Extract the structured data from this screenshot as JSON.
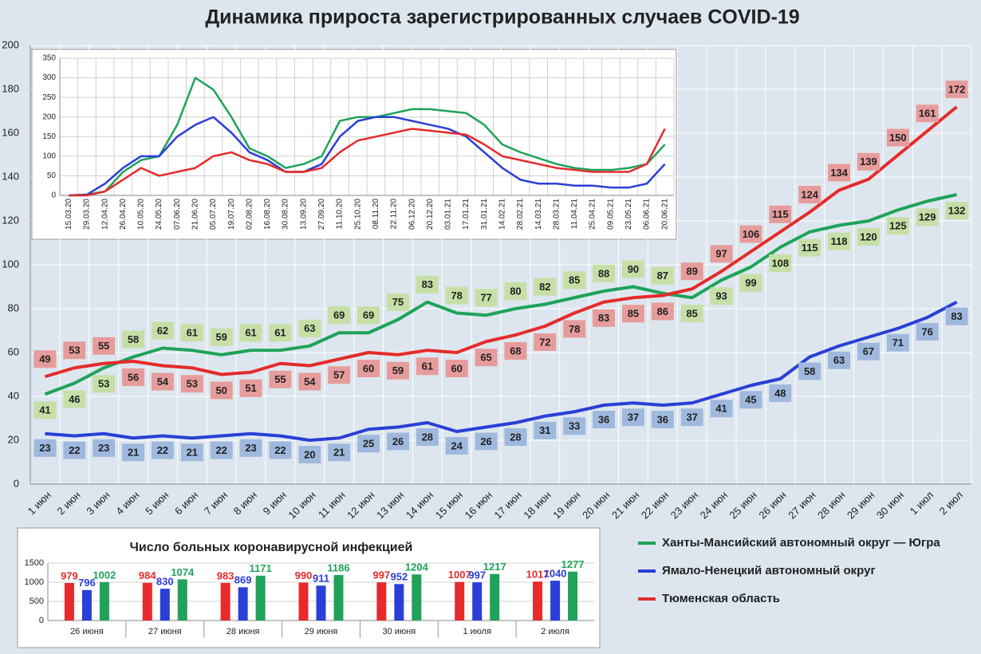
{
  "chart_data": [
    {
      "type": "line",
      "title": "Динамика прироста зарегистрированных случаев COVID-19",
      "categories": [
        "1 июн",
        "2 июн",
        "3 июн",
        "4 июн",
        "5 июн",
        "6 июн",
        "7 июн",
        "8 июн",
        "9 июн",
        "10 июн",
        "11 июн",
        "12 июн",
        "13 июн",
        "14 июн",
        "15 июн",
        "16 июн",
        "17 июн",
        "18 июн",
        "19 июн",
        "20 июн",
        "21 июн",
        "22 июн",
        "23 июн",
        "24 июн",
        "25 июн",
        "26 июн",
        "27 июн",
        "28 июн",
        "29 июн",
        "30 июн",
        "1 июл",
        "2 июл"
      ],
      "series": [
        {
          "name": "Ханты-Мансийский автономный округ — Югра",
          "color": "#1fa35a",
          "label_color": "#c6dfa6",
          "values": [
            41,
            46,
            53,
            58,
            62,
            61,
            59,
            61,
            61,
            63,
            69,
            69,
            75,
            83,
            78,
            77,
            80,
            82,
            85,
            88,
            90,
            87,
            85,
            93,
            99,
            108,
            115,
            118,
            120,
            125,
            129,
            132
          ]
        },
        {
          "name": "Ямало-Ненецкий автономный округ",
          "color": "#2a3fd6",
          "label_color": "#9fb9de",
          "values": [
            23,
            22,
            23,
            21,
            22,
            21,
            22,
            23,
            22,
            20,
            21,
            25,
            26,
            28,
            24,
            26,
            28,
            31,
            33,
            36,
            37,
            36,
            37,
            41,
            45,
            48,
            58,
            63,
            67,
            71,
            76,
            83
          ]
        },
        {
          "name": "Тюменская область",
          "color": "#e52b2b",
          "label_color": "#e79c9c",
          "values": [
            49,
            53,
            55,
            56,
            54,
            53,
            50,
            51,
            55,
            54,
            57,
            60,
            59,
            61,
            60,
            65,
            68,
            72,
            78,
            83,
            85,
            86,
            89,
            97,
            106,
            115,
            124,
            134,
            139,
            150,
            161,
            172
          ]
        }
      ],
      "ylim": [
        0,
        200
      ],
      "yticks": [
        0,
        20,
        40,
        60,
        80,
        100,
        120,
        140,
        160,
        180,
        200
      ],
      "grid": true,
      "data_labels": true,
      "legend": "bottom-right"
    },
    {
      "type": "line",
      "categories": [
        "15.03.20",
        "29.03.20",
        "12.04.20",
        "26.04.20",
        "10.05.20",
        "24.05.20",
        "07.06.20",
        "21.06.20",
        "05.07.20",
        "19.07.20",
        "02.08.20",
        "16.08.20",
        "30.08.20",
        "13.09.20",
        "27.09.20",
        "11.10.20",
        "25.10.20",
        "08.11.20",
        "22.11.20",
        "06.12.20",
        "20.12.20",
        "03.01.21",
        "17.01.21",
        "31.01.21",
        "14.02.21",
        "28.02.21",
        "14.03.21",
        "28.03.21",
        "11.04.21",
        "25.04.21",
        "09.05.21",
        "23.05.21",
        "06.06.21",
        "20.06.21"
      ],
      "series": [
        {
          "color": "#1fa35a",
          "values": [
            0,
            2,
            10,
            60,
            90,
            100,
            180,
            300,
            270,
            200,
            120,
            100,
            70,
            80,
            100,
            190,
            200,
            200,
            210,
            220,
            220,
            215,
            210,
            180,
            130,
            110,
            95,
            80,
            70,
            65,
            65,
            70,
            80,
            130
          ]
        },
        {
          "color": "#2a3fd6",
          "values": [
            0,
            2,
            30,
            70,
            100,
            100,
            150,
            180,
            200,
            160,
            110,
            90,
            60,
            60,
            80,
            150,
            190,
            200,
            200,
            190,
            180,
            170,
            150,
            110,
            70,
            40,
            30,
            30,
            25,
            25,
            20,
            20,
            30,
            80
          ]
        },
        {
          "color": "#e52b2b",
          "values": [
            0,
            0,
            10,
            40,
            70,
            50,
            60,
            70,
            100,
            110,
            90,
            80,
            60,
            60,
            70,
            110,
            140,
            150,
            160,
            170,
            165,
            160,
            155,
            130,
            100,
            90,
            80,
            70,
            65,
            60,
            60,
            60,
            80,
            170
          ]
        }
      ],
      "ylim": [
        0,
        350
      ],
      "yticks": [
        0,
        50,
        100,
        150,
        200,
        250,
        300,
        350
      ],
      "grid": true
    },
    {
      "type": "bar",
      "title": "Число больных коронавирусной инфекцией",
      "categories": [
        "26 июня",
        "27 июня",
        "28 июня",
        "29 июня",
        "30 июня",
        "1 июля",
        "2 июля"
      ],
      "series": [
        {
          "color": "#e52b2b",
          "values": [
            979,
            984,
            983,
            990,
            997,
            1007,
            1017
          ]
        },
        {
          "color": "#2a3fd6",
          "values": [
            796,
            830,
            869,
            911,
            952,
            997,
            1040
          ]
        },
        {
          "color": "#1fa35a",
          "values": [
            1002,
            1074,
            1171,
            1186,
            1204,
            1217,
            1277
          ]
        }
      ],
      "ylim": [
        0,
        1500
      ],
      "yticks": [
        0,
        500,
        1000,
        1500
      ],
      "grid": true,
      "data_labels": true
    }
  ]
}
